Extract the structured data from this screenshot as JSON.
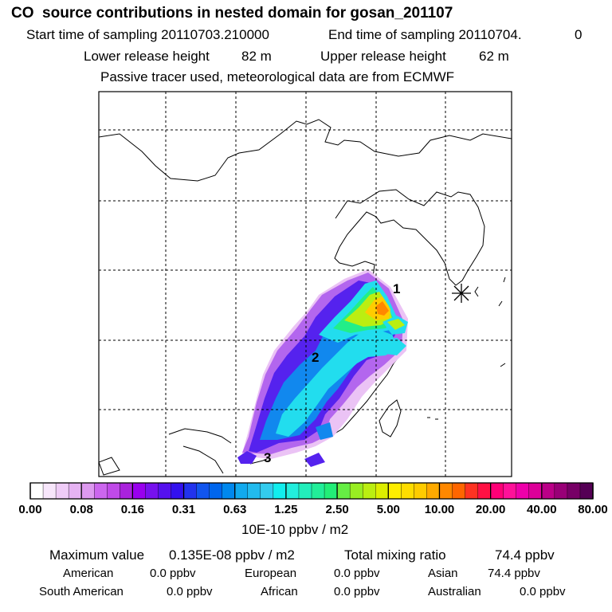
{
  "header": {
    "title": "CO  source contributions in nested domain for gosan_201107",
    "start_label": "Start time of sampling 20110703.210000",
    "end_label": "End time of sampling 20110704.",
    "end_suffix": "0",
    "lower_label": "Lower release height",
    "lower_value": "82 m",
    "upper_label": "Upper release height",
    "upper_value": "62 m",
    "tracer_note": "Passive tracer used, meteorological data are from ECMWF"
  },
  "map": {
    "region_labels": [
      "1",
      "2",
      "3"
    ],
    "receptor_marker": "asterisk-icon"
  },
  "colorbar": {
    "tick_labels": [
      "0.00",
      "0.08",
      "0.16",
      "0.31",
      "0.63",
      "1.25",
      "2.50",
      "5.00",
      "10.00",
      "20.00",
      "40.00",
      "80.00"
    ],
    "colors": [
      "#ffffff",
      "#f7e6fb",
      "#efccf7",
      "#e6b3f3",
      "#dd99ef",
      "#cc66ee",
      "#c04ae8",
      "#aa22dd",
      "#9900ee",
      "#7711ee",
      "#5511ee",
      "#3311ee",
      "#2233ee",
      "#1155ee",
      "#0066ee",
      "#0088ee",
      "#11aaee",
      "#22bbee",
      "#33ccee",
      "#11eeee",
      "#22eedd",
      "#22eebb",
      "#22ee99",
      "#22ee77",
      "#66ee44",
      "#99ee22",
      "#bbee11",
      "#ddee00",
      "#ffee00",
      "#ffdd00",
      "#ffcc00",
      "#ffaa00",
      "#ff8800",
      "#ff6600",
      "#ff3322",
      "#ff1144",
      "#ff0077",
      "#ff1199",
      "#ee00aa",
      "#dd0099",
      "#bb0088",
      "#990077",
      "#770066",
      "#550055"
    ],
    "unit_label": "10E-10 ppbv / m2"
  },
  "summary": {
    "max_label": "Maximum value",
    "max_value": "0.135E-08 ppbv / m2",
    "total_label": "Total mixing ratio",
    "total_value": "74.4 ppbv",
    "regions": [
      {
        "name": "American",
        "value": "0.0 ppbv"
      },
      {
        "name": "European",
        "value": "0.0 ppbv"
      },
      {
        "name": "Asian",
        "value": "74.4 ppbv"
      },
      {
        "name": "South American",
        "value": "0.0 ppbv"
      },
      {
        "name": "African",
        "value": "0.0 ppbv"
      },
      {
        "name": "Australian",
        "value": "0.0 ppbv"
      }
    ]
  }
}
